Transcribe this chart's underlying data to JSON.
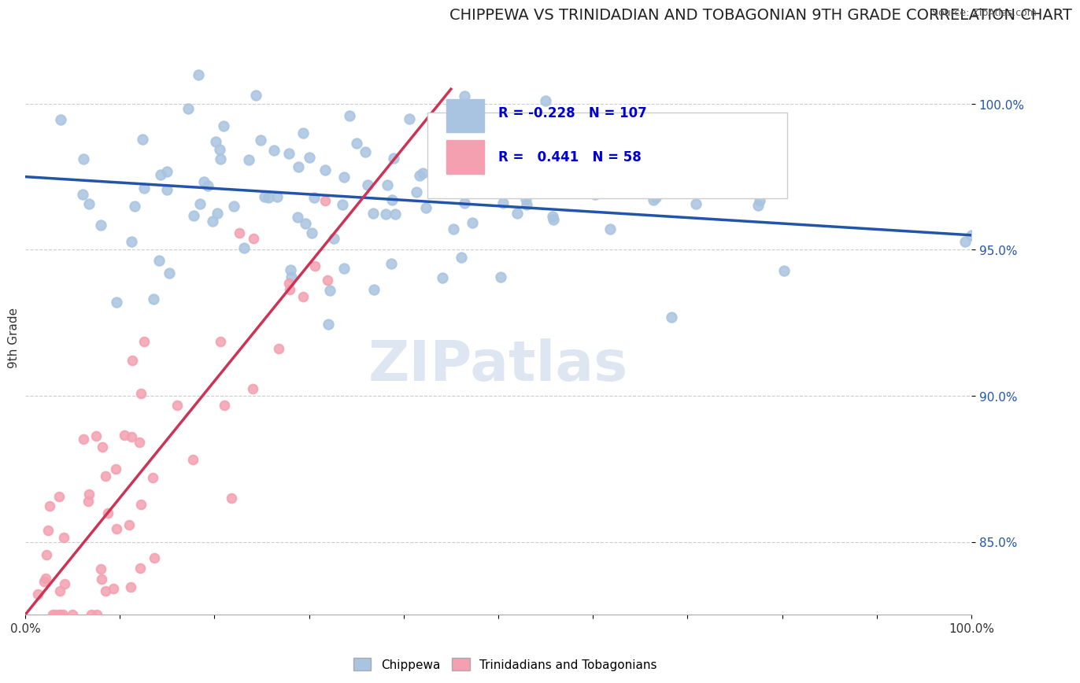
{
  "title": "CHIPPEWA VS TRINIDADIAN AND TOBAGONIAN 9TH GRADE CORRELATION CHART",
  "source_text": "Source: ZipAtlas.com",
  "xlabel": "",
  "ylabel": "9th Grade",
  "xmin": 0.0,
  "xmax": 1.0,
  "ymin": 0.825,
  "ymax": 1.015,
  "yticks": [
    0.85,
    0.9,
    0.95,
    1.0
  ],
  "ytick_labels": [
    "85.0%",
    "90.0%",
    "95.0%",
    "100.0%"
  ],
  "xtick_labels": [
    "0.0%",
    "100.0%"
  ],
  "xtick_positions": [
    0.0,
    1.0
  ],
  "blue_R": -0.228,
  "blue_N": 107,
  "pink_R": 0.441,
  "pink_N": 58,
  "blue_color": "#a8c4e0",
  "blue_line_color": "#2255aa",
  "pink_color": "#f4a0b0",
  "pink_line_color": "#cc3355",
  "blue_marker_size": 80,
  "pink_marker_size": 70,
  "legend_R_color": "#0000cc",
  "watermark": "ZIPatlas",
  "watermark_color": "#c8d8e8",
  "blue_trend_x0": 0.0,
  "blue_trend_y0": 0.975,
  "blue_trend_x1": 1.0,
  "blue_trend_y1": 0.955,
  "pink_trend_x0": 0.0,
  "pink_trend_y0": 0.825,
  "pink_trend_x1": 0.45,
  "pink_trend_y1": 1.005
}
